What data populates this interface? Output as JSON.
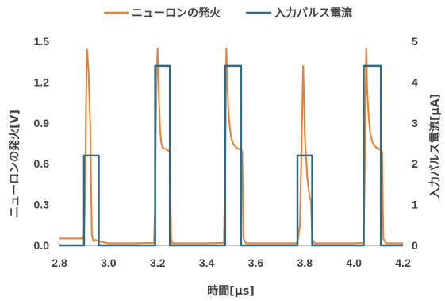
{
  "chart_data": {
    "type": "line",
    "title": "",
    "xlabel": "時間[μs]",
    "ylabel_left": "ニューロンの発火[V]",
    "ylabel_right": "入力パルス電流[μA]",
    "xlim": [
      2.8,
      4.2
    ],
    "ylim_left": [
      0,
      1.5
    ],
    "ylim_right": [
      0,
      5
    ],
    "x_ticks": [
      "2.8",
      "3.0",
      "3.2",
      "3.4",
      "3.6",
      "3.8",
      "4.0",
      "4.2"
    ],
    "y_left_ticks": [
      "0.0",
      "0.3",
      "0.6",
      "0.9",
      "1.2",
      "1.5"
    ],
    "y_right_ticks": [
      "0",
      "1",
      "2",
      "3",
      "4",
      "5"
    ],
    "grid": false,
    "legend_position": "top",
    "series": [
      {
        "name": "ニューロンの発火",
        "axis": "left",
        "color": "#ED7D31",
        "x": [
          2.8,
          2.895,
          2.9,
          2.905,
          2.908,
          2.912,
          2.918,
          2.925,
          2.93,
          2.932,
          2.936,
          2.94,
          2.945,
          2.96,
          3.0,
          3.1,
          3.185,
          3.19,
          3.192,
          3.196,
          3.2,
          3.205,
          3.21,
          3.215,
          3.22,
          3.23,
          3.24,
          3.25,
          3.255,
          3.26,
          3.27,
          3.3,
          3.4,
          3.47,
          3.476,
          3.48,
          3.484,
          3.488,
          3.495,
          3.5,
          3.505,
          3.51,
          3.52,
          3.53,
          3.54,
          3.545,
          3.55,
          3.56,
          3.6,
          3.7,
          3.77,
          3.78,
          3.788,
          3.793,
          3.795,
          3.8,
          3.81,
          3.82,
          3.825,
          3.83,
          3.84,
          3.9,
          4.0,
          4.04,
          4.045,
          4.05,
          4.054,
          4.06,
          4.066,
          4.075,
          4.09,
          4.1,
          4.11,
          4.115,
          4.12,
          4.13,
          4.2
        ],
        "y": [
          0.05,
          0.05,
          0.08,
          0.4,
          1.0,
          1.44,
          1.3,
          0.9,
          0.3,
          0.08,
          0.04,
          0.03,
          0.04,
          0.03,
          0.015,
          0.015,
          0.018,
          0.3,
          0.7,
          1.25,
          1.45,
          1.1,
          0.85,
          0.75,
          0.72,
          0.71,
          0.7,
          0.69,
          0.05,
          0.015,
          0.015,
          0.015,
          0.015,
          0.018,
          0.6,
          1.45,
          1.2,
          1.0,
          0.85,
          0.79,
          0.76,
          0.74,
          0.72,
          0.71,
          0.7,
          0.69,
          0.05,
          0.015,
          0.015,
          0.015,
          0.015,
          0.15,
          0.85,
          1.32,
          1.2,
          0.8,
          0.5,
          0.35,
          0.33,
          0.05,
          0.015,
          0.015,
          0.015,
          0.018,
          0.6,
          1.45,
          1.15,
          0.95,
          0.83,
          0.76,
          0.72,
          0.71,
          0.7,
          0.69,
          0.05,
          0.015,
          0.015
        ]
      },
      {
        "name": "入力パルス電流",
        "axis": "right",
        "color": "#2E6A82",
        "x": [
          2.8,
          2.9,
          2.9,
          2.96,
          2.96,
          3.19,
          3.19,
          3.25,
          3.25,
          3.475,
          3.475,
          3.54,
          3.54,
          3.77,
          3.77,
          3.83,
          3.83,
          4.04,
          4.04,
          4.11,
          4.11,
          4.2
        ],
        "y": [
          0,
          0,
          2.2,
          2.2,
          0,
          0,
          4.4,
          4.4,
          0,
          0,
          4.4,
          4.4,
          0,
          0,
          2.2,
          2.2,
          0,
          0,
          4.4,
          4.4,
          0,
          0
        ]
      }
    ]
  }
}
